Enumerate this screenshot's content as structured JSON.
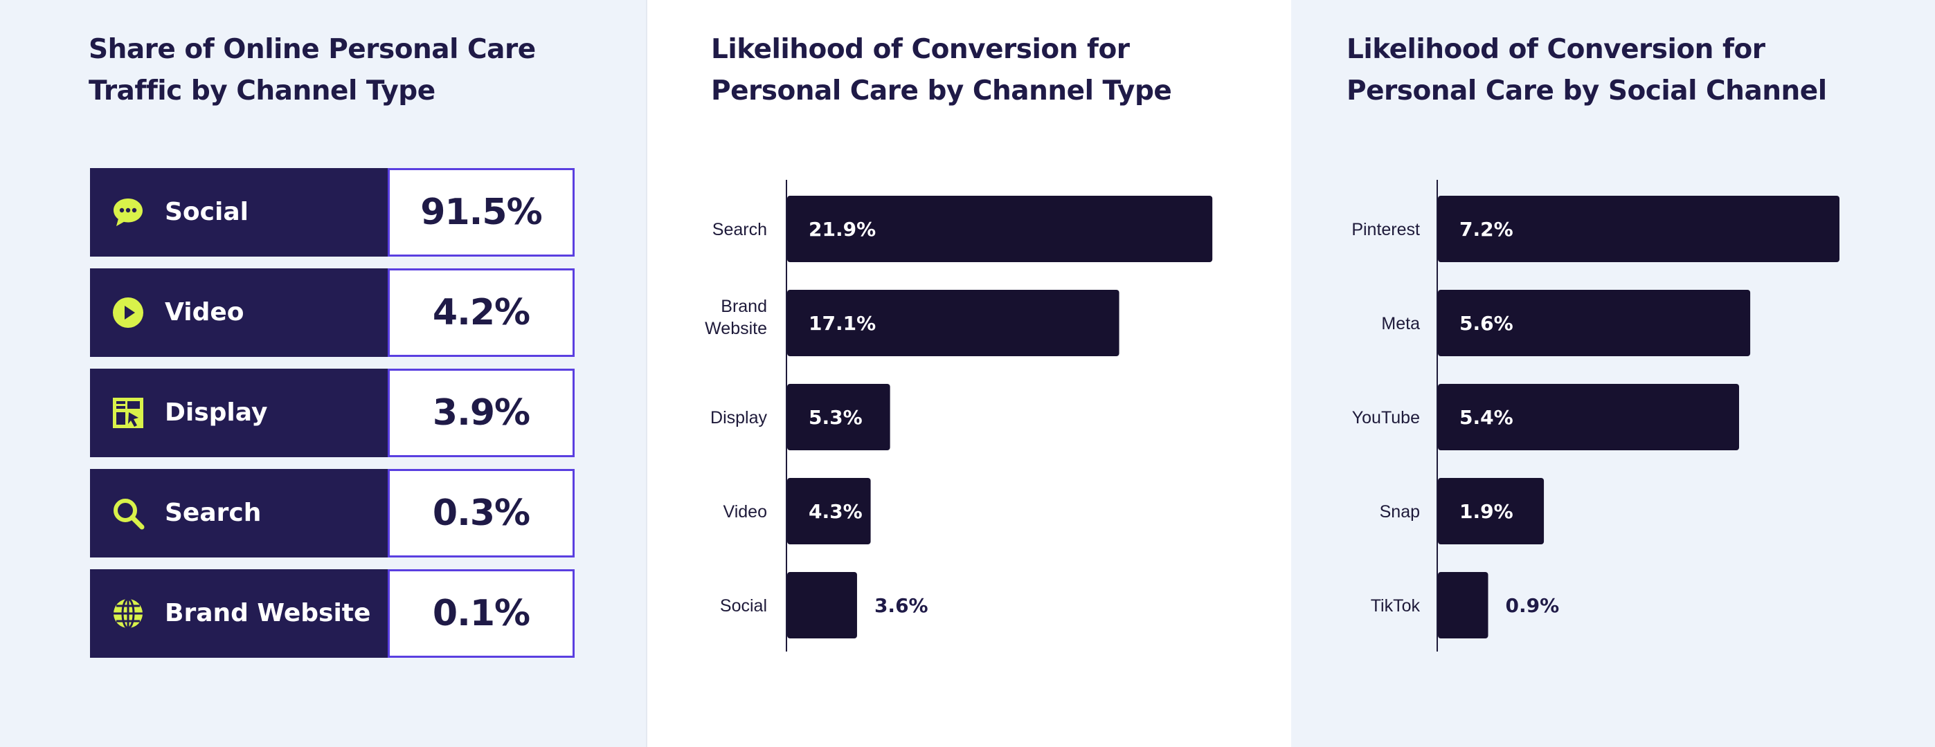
{
  "colors": {
    "panel_bg": "#eef3fa",
    "center_bg": "#ffffff",
    "dark_navy": "#231c52",
    "bar_color": "#17112f",
    "accent_lime": "#d9f24a",
    "accent_purple": "#5a3fe0"
  },
  "chart_data": [
    {
      "type": "table",
      "title": "Share of Online Personal Care Traffic by Channel Type",
      "rows": [
        {
          "label": "Social",
          "value": "91.5%",
          "icon": "chat-bubble-icon"
        },
        {
          "label": "Video",
          "value": "4.2%",
          "icon": "play-icon"
        },
        {
          "label": "Display",
          "value": "3.9%",
          "icon": "display-ad-icon"
        },
        {
          "label": "Search",
          "value": "0.3%",
          "icon": "search-icon"
        },
        {
          "label": "Brand Website",
          "value": "0.1%",
          "icon": "globe-icon"
        }
      ]
    },
    {
      "type": "bar",
      "orientation": "horizontal",
      "title": "Likelihood of Conversion for Personal Care by Channel Type",
      "categories": [
        "Search",
        "Brand Website",
        "Display",
        "Video",
        "Social"
      ],
      "values": [
        21.9,
        17.1,
        5.3,
        4.3,
        3.6
      ],
      "value_labels": [
        "21.9%",
        "17.1%",
        "5.3%",
        "4.3%",
        "3.6%"
      ],
      "xlim": [
        0,
        22
      ],
      "grid": false
    },
    {
      "type": "bar",
      "orientation": "horizontal",
      "title": "Likelihood of Conversion for Personal Care by Social Channel",
      "categories": [
        "Pinterest",
        "Meta",
        "YouTube",
        "Snap",
        "TikTok"
      ],
      "values": [
        7.2,
        5.6,
        5.4,
        1.9,
        0.9
      ],
      "value_labels": [
        "7.2%",
        "5.6%",
        "5.4%",
        "1.9%",
        "0.9%"
      ],
      "xlim": [
        0,
        7.2
      ],
      "grid": false
    }
  ]
}
